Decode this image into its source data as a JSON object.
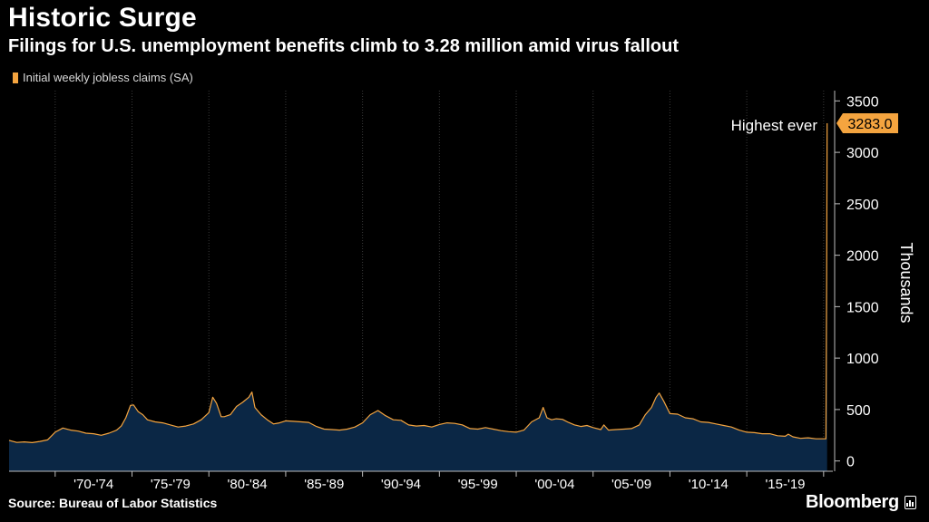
{
  "header": {
    "title": "Historic Surge",
    "subtitle": "Filings for U.S. unemployment benefits climb to 3.28 million amid virus fallout"
  },
  "legend": {
    "label": "Initial weekly jobless claims (SA)"
  },
  "footer": {
    "source": "Source: Bureau of Labor Statistics",
    "brand": "Bloomberg"
  },
  "colors": {
    "background": "#000000",
    "line": "#f4a43f",
    "area": "#0b2745",
    "grid": "#3a3a3a",
    "label_bg": "#f4a43f"
  },
  "chart_data": {
    "type": "area",
    "title": "Historic Surge",
    "subtitle": "Filings for U.S. unemployment benefits climb to 3.28 million amid virus fallout",
    "ylabel": "Thousands",
    "ylim": [
      -100,
      3600
    ],
    "yticks": [
      0,
      500,
      1000,
      1500,
      2000,
      2500,
      3000,
      3500
    ],
    "xlim": [
      1967.0,
      2020.6
    ],
    "xtick_labels": [
      "'70-'74",
      "'75-'79",
      "'80-'84",
      "'85-'89",
      "'90-'94",
      "'95-'99",
      "'00-'04",
      "'05-'09",
      "'10-'14",
      "'15-'19"
    ],
    "xtick_ranges": [
      [
        1970,
        1975
      ],
      [
        1975,
        1980
      ],
      [
        1980,
        1985
      ],
      [
        1985,
        1990
      ],
      [
        1990,
        1995
      ],
      [
        1995,
        2000
      ],
      [
        2000,
        2005
      ],
      [
        2005,
        2010
      ],
      [
        2010,
        2015
      ],
      [
        2015,
        2020
      ]
    ],
    "grid": "vertical",
    "legend_position": "top-left",
    "annotation": {
      "text": "Highest ever",
      "value_label": "3283.0"
    },
    "series": [
      {
        "name": "Initial weekly jobless claims (SA)",
        "x": [
          1967.0,
          1967.5,
          1968.0,
          1968.5,
          1969.0,
          1969.5,
          1970.0,
          1970.5,
          1971.0,
          1971.5,
          1972.0,
          1972.5,
          1973.0,
          1973.5,
          1974.0,
          1974.3,
          1974.6,
          1974.9,
          1975.1,
          1975.4,
          1975.7,
          1976.0,
          1976.5,
          1977.0,
          1977.5,
          1978.0,
          1978.5,
          1979.0,
          1979.5,
          1980.0,
          1980.25,
          1980.5,
          1980.8,
          1981.0,
          1981.4,
          1981.8,
          1982.2,
          1982.6,
          1982.8,
          1983.0,
          1983.4,
          1983.8,
          1984.2,
          1984.6,
          1985.0,
          1985.5,
          1986.0,
          1986.5,
          1987.0,
          1987.5,
          1988.0,
          1988.5,
          1989.0,
          1989.5,
          1990.0,
          1990.5,
          1991.0,
          1991.5,
          1992.0,
          1992.5,
          1993.0,
          1993.5,
          1994.0,
          1994.5,
          1995.0,
          1995.5,
          1996.0,
          1996.5,
          1997.0,
          1997.5,
          1998.0,
          1998.5,
          1999.0,
          1999.5,
          2000.0,
          2000.5,
          2001.0,
          2001.5,
          2001.75,
          2002.0,
          2002.3,
          2002.6,
          2003.0,
          2003.4,
          2003.8,
          2004.2,
          2004.6,
          2005.0,
          2005.5,
          2005.7,
          2006.0,
          2006.5,
          2007.0,
          2007.5,
          2008.0,
          2008.4,
          2008.8,
          2009.1,
          2009.3,
          2009.6,
          2010.0,
          2010.5,
          2011.0,
          2011.5,
          2012.0,
          2012.5,
          2013.0,
          2013.5,
          2014.0,
          2014.5,
          2015.0,
          2015.5,
          2016.0,
          2016.5,
          2017.0,
          2017.5,
          2017.7,
          2018.0,
          2018.5,
          2019.0,
          2019.5,
          2020.0,
          2020.15,
          2020.2,
          2020.23
        ],
        "y": [
          200,
          180,
          185,
          178,
          190,
          205,
          280,
          320,
          300,
          290,
          270,
          265,
          250,
          270,
          300,
          340,
          420,
          540,
          545,
          480,
          450,
          400,
          380,
          370,
          350,
          330,
          340,
          360,
          400,
          470,
          620,
          560,
          430,
          430,
          450,
          530,
          570,
          620,
          670,
          520,
          450,
          400,
          360,
          370,
          390,
          385,
          380,
          375,
          335,
          310,
          305,
          300,
          310,
          330,
          370,
          450,
          490,
          440,
          400,
          395,
          350,
          340,
          345,
          330,
          355,
          370,
          365,
          350,
          315,
          310,
          325,
          310,
          295,
          285,
          280,
          300,
          380,
          420,
          520,
          420,
          400,
          410,
          405,
          375,
          350,
          335,
          345,
          325,
          305,
          350,
          300,
          305,
          310,
          315,
          350,
          450,
          520,
          620,
          660,
          580,
          460,
          455,
          420,
          410,
          380,
          375,
          360,
          345,
          330,
          300,
          280,
          275,
          265,
          265,
          245,
          240,
          260,
          235,
          220,
          225,
          215,
          215,
          215,
          1800,
          3283
        ]
      }
    ]
  }
}
